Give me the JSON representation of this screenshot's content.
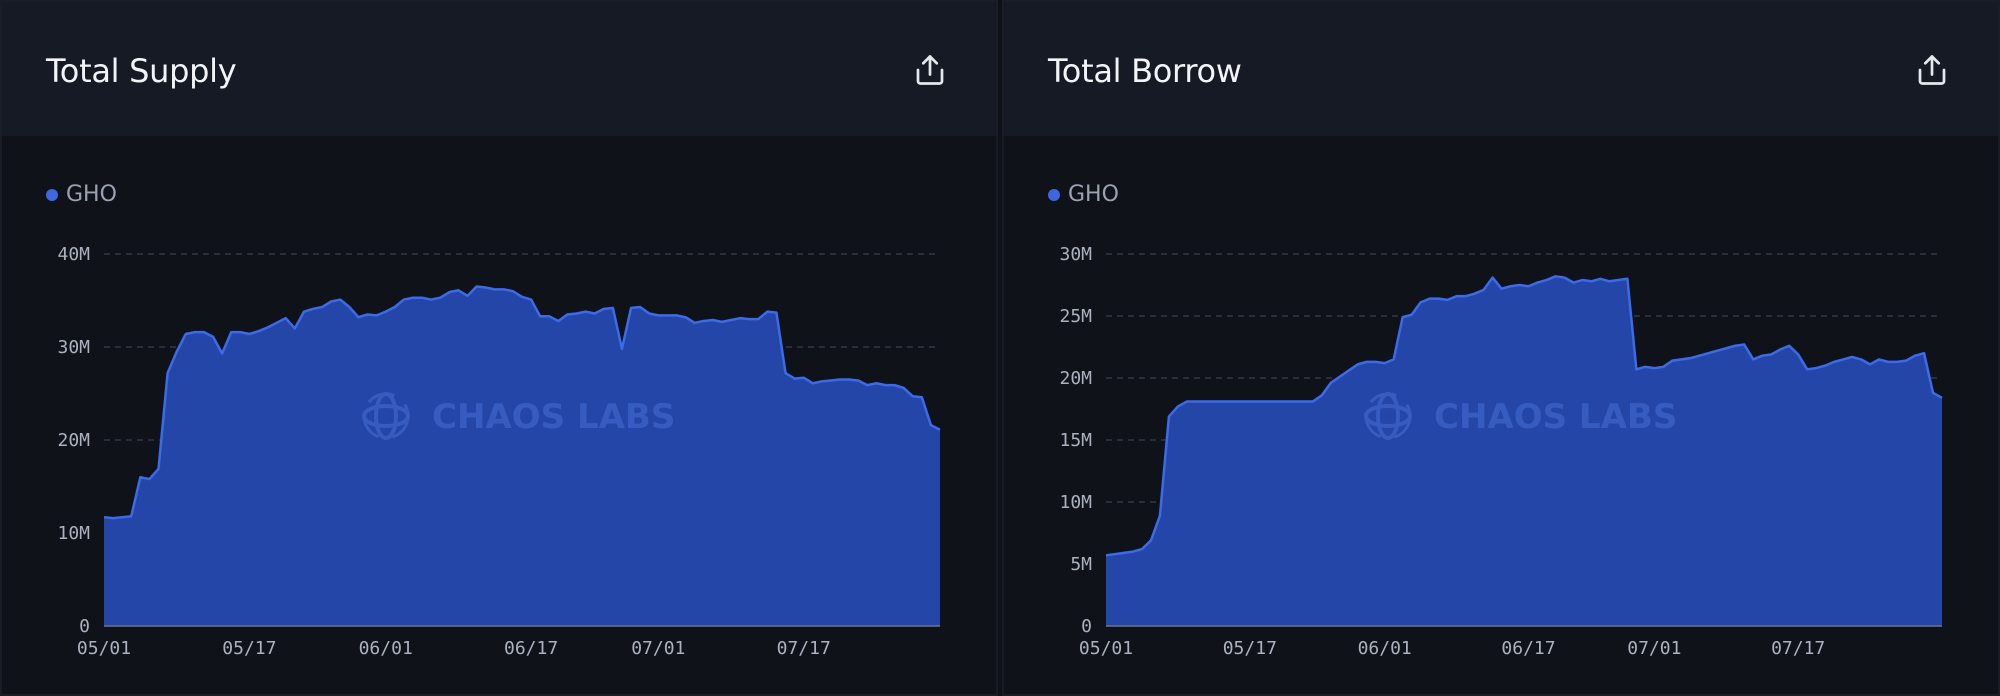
{
  "panels": [
    {
      "title": "Total Supply",
      "export_icon": "share-export-icon",
      "legend_label": "GHO",
      "watermark": "CHAOS LABS"
    },
    {
      "title": "Total Borrow",
      "export_icon": "share-export-icon",
      "legend_label": "GHO",
      "watermark": "CHAOS LABS"
    }
  ],
  "colors": {
    "series_fill": "#2446a8",
    "series_line": "#3d6ae6",
    "grid": "#3a3f4d",
    "background": "#10121a"
  },
  "chart_data": [
    {
      "type": "area",
      "title": "Total Supply",
      "series": [
        {
          "name": "GHO",
          "values": [
            11.7,
            11.6,
            11.7,
            11.8,
            16.0,
            15.8,
            16.9,
            27.2,
            29.5,
            31.4,
            31.6,
            31.6,
            31.1,
            29.3,
            31.6,
            31.6,
            31.4,
            31.7,
            32.1,
            32.6,
            33.1,
            32.0,
            33.8,
            34.1,
            34.3,
            34.9,
            35.1,
            34.3,
            33.2,
            33.5,
            33.4,
            33.8,
            34.3,
            35.1,
            35.3,
            35.3,
            35.1,
            35.3,
            35.9,
            36.1,
            35.5,
            36.5,
            36.4,
            36.2,
            36.2,
            36.0,
            35.4,
            35.1,
            33.3,
            33.3,
            32.8,
            33.5,
            33.6,
            33.8,
            33.6,
            34.1,
            34.2,
            29.8,
            34.2,
            34.3,
            33.6,
            33.4,
            33.4,
            33.4,
            33.2,
            32.6,
            32.8,
            32.9,
            32.7,
            32.9,
            33.1,
            33.0,
            33.0,
            33.8,
            33.7,
            27.2,
            26.6,
            26.7,
            26.1,
            26.3,
            26.4,
            26.5,
            26.5,
            26.4,
            25.9,
            26.1,
            25.9,
            25.9,
            25.6,
            24.7,
            24.6,
            21.6,
            21.1
          ]
        }
      ],
      "x_start": "05/01",
      "x_ticks": [
        "05/01",
        "05/17",
        "06/01",
        "06/17",
        "07/01",
        "07/17"
      ],
      "y_ticks": [
        "0",
        "10M",
        "20M",
        "30M",
        "40M"
      ],
      "ylim": [
        0,
        40
      ],
      "grid": true,
      "legend_position": "top-left"
    },
    {
      "type": "area",
      "title": "Total Borrow",
      "series": [
        {
          "name": "GHO",
          "values": [
            5.7,
            5.8,
            5.9,
            6.0,
            6.2,
            6.9,
            8.9,
            16.9,
            17.7,
            18.1,
            18.1,
            18.1,
            18.1,
            18.1,
            18.1,
            18.1,
            18.1,
            18.1,
            18.1,
            18.1,
            18.1,
            18.1,
            18.1,
            18.1,
            18.6,
            19.6,
            20.1,
            20.6,
            21.1,
            21.3,
            21.3,
            21.2,
            21.5,
            24.9,
            25.1,
            26.1,
            26.4,
            26.4,
            26.3,
            26.6,
            26.6,
            26.8,
            27.1,
            28.1,
            27.2,
            27.4,
            27.5,
            27.4,
            27.7,
            27.9,
            28.2,
            28.1,
            27.7,
            27.9,
            27.8,
            28.0,
            27.8,
            27.9,
            28.0,
            20.7,
            20.9,
            20.8,
            20.9,
            21.4,
            21.5,
            21.6,
            21.8,
            22.0,
            22.2,
            22.4,
            22.6,
            22.7,
            21.5,
            21.8,
            21.9,
            22.3,
            22.6,
            21.9,
            20.7,
            20.8,
            21.0,
            21.3,
            21.5,
            21.7,
            21.5,
            21.1,
            21.5,
            21.3,
            21.3,
            21.4,
            21.8,
            22.0,
            18.8,
            18.4
          ]
        }
      ],
      "x_start": "05/01",
      "x_ticks": [
        "05/01",
        "05/17",
        "06/01",
        "06/17",
        "07/01",
        "07/17"
      ],
      "y_ticks": [
        "0",
        "5M",
        "10M",
        "15M",
        "20M",
        "25M",
        "30M"
      ],
      "ylim": [
        0,
        30
      ],
      "grid": true,
      "legend_position": "top-left"
    }
  ]
}
